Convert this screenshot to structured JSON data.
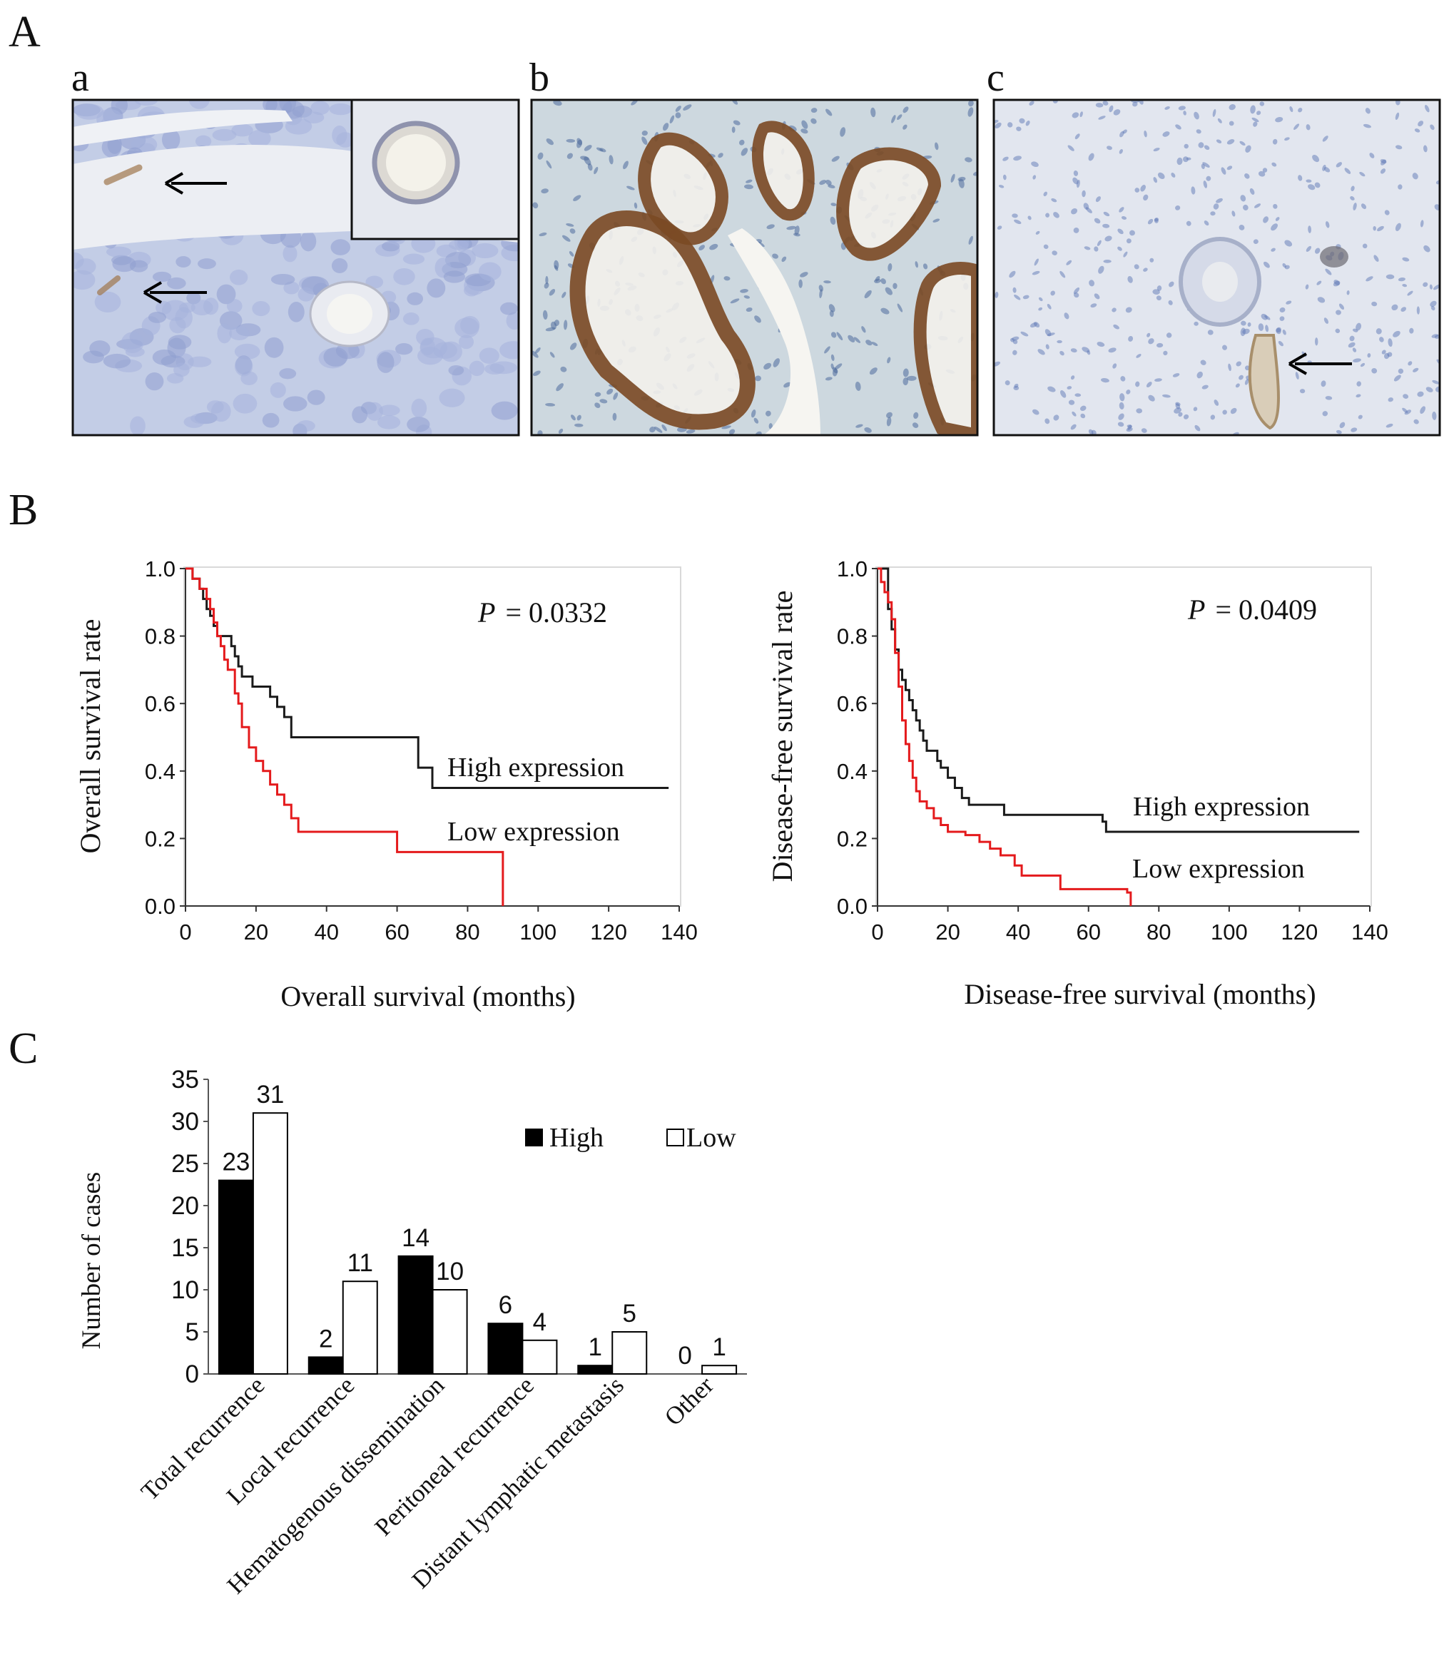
{
  "figure": {
    "panel_labels": [
      "A",
      "B",
      "C"
    ],
    "micrograph_labels": [
      "a",
      "b",
      "c"
    ],
    "micrographs": [
      {
        "label": "a",
        "stain": "weak",
        "arrows": 2,
        "inset": true
      },
      {
        "label": "b",
        "stain": "strong",
        "arrows": 0,
        "inset": false
      },
      {
        "label": "c",
        "stain": "negative",
        "arrows": 1,
        "inset": false
      }
    ]
  },
  "colors": {
    "high_series": "#1a1a1a",
    "low_series": "#e41a1c",
    "bar_high_fill": "#000000",
    "bar_low_fill": "#ffffff",
    "tissue_background": "#cdd6e8",
    "brown_stain": "#8a5a2b"
  },
  "chart_data": [
    {
      "panel": "B-left",
      "type": "line",
      "xlabel": "Overall survival (months)",
      "ylabel": "Overall survival rate",
      "xlim": [
        0,
        140
      ],
      "ylim": [
        0,
        1
      ],
      "xticks": [
        0,
        20,
        40,
        60,
        80,
        100,
        120,
        140
      ],
      "yticks": [
        0.0,
        0.2,
        0.4,
        0.6,
        0.8,
        1.0
      ],
      "ytick_labels": [
        "0.0",
        "0.2",
        "0.4",
        "0.6",
        "0.8",
        "1.0"
      ],
      "p_prefix": "P",
      "p_value": "= 0.0332",
      "series": [
        {
          "name": "High expression",
          "color_key": "high_series",
          "x": [
            0,
            2,
            4,
            5,
            6,
            7,
            8,
            9,
            11,
            13,
            14,
            15,
            16,
            19,
            22,
            24,
            26,
            28,
            30,
            66,
            70,
            137
          ],
          "y": [
            1.0,
            0.97,
            0.94,
            0.91,
            0.88,
            0.86,
            0.83,
            0.8,
            0.8,
            0.77,
            0.74,
            0.71,
            0.68,
            0.65,
            0.65,
            0.62,
            0.59,
            0.56,
            0.5,
            0.41,
            0.35,
            0.35
          ]
        },
        {
          "name": "Low expression",
          "color_key": "low_series",
          "x": [
            0,
            2,
            4,
            6,
            7,
            8,
            9,
            10,
            11,
            12,
            14,
            15,
            16,
            18,
            20,
            22,
            24,
            26,
            28,
            30,
            32,
            60,
            90,
            90
          ],
          "y": [
            1.0,
            0.97,
            0.94,
            0.91,
            0.88,
            0.84,
            0.8,
            0.77,
            0.73,
            0.7,
            0.63,
            0.6,
            0.53,
            0.47,
            0.43,
            0.4,
            0.36,
            0.33,
            0.3,
            0.26,
            0.22,
            0.16,
            0.16,
            0.0
          ]
        }
      ]
    },
    {
      "panel": "B-right",
      "type": "line",
      "xlabel": "Disease-free survival (months)",
      "ylabel": "Disease-free survival rate",
      "xlim": [
        0,
        140
      ],
      "ylim": [
        0,
        1
      ],
      "xticks": [
        0,
        20,
        40,
        60,
        80,
        100,
        120,
        140
      ],
      "yticks": [
        0.0,
        0.2,
        0.4,
        0.6,
        0.8,
        1.0
      ],
      "ytick_labels": [
        "0.0",
        "0.2",
        "0.4",
        "0.6",
        "0.8",
        "1.0"
      ],
      "p_prefix": "P",
      "p_value": "= 0.0409",
      "series": [
        {
          "name": "High expression",
          "color_key": "high_series",
          "x": [
            0,
            3,
            4,
            5,
            6,
            7,
            8,
            9,
            10,
            11,
            12,
            13,
            14,
            15,
            17,
            18,
            20,
            22,
            24,
            26,
            27,
            28,
            36,
            37,
            64,
            65,
            137
          ],
          "y": [
            1.0,
            0.88,
            0.82,
            0.76,
            0.7,
            0.67,
            0.64,
            0.61,
            0.58,
            0.55,
            0.52,
            0.49,
            0.46,
            0.46,
            0.43,
            0.41,
            0.38,
            0.35,
            0.32,
            0.3,
            0.3,
            0.3,
            0.27,
            0.27,
            0.25,
            0.22,
            0.22
          ]
        },
        {
          "name": "Low expression",
          "color_key": "low_series",
          "x": [
            0,
            1,
            2,
            3,
            4,
            5,
            6,
            7,
            8,
            9,
            10,
            11,
            12,
            14,
            16,
            18,
            20,
            25,
            29,
            32,
            35,
            39,
            41,
            52,
            71,
            72,
            72
          ],
          "y": [
            1.0,
            0.96,
            0.93,
            0.9,
            0.85,
            0.75,
            0.65,
            0.55,
            0.48,
            0.43,
            0.38,
            0.34,
            0.31,
            0.29,
            0.26,
            0.24,
            0.22,
            0.21,
            0.19,
            0.17,
            0.15,
            0.12,
            0.09,
            0.05,
            0.04,
            0.03,
            0.0
          ]
        }
      ]
    },
    {
      "panel": "C",
      "type": "bar",
      "ylabel": "Number of cases",
      "ylim": [
        0,
        35
      ],
      "yticks": [
        0,
        5,
        10,
        15,
        20,
        25,
        30,
        35
      ],
      "legend_placement": "top-right",
      "categories": [
        "Total recurrence",
        "Local recurrence",
        "Hematogenous dissemination",
        "Peritoneal recurrence",
        "Distant lymphatic metastasis",
        "Other"
      ],
      "series": [
        {
          "name": "High",
          "fill_key": "bar_high_fill",
          "values": [
            23,
            2,
            14,
            6,
            1,
            0
          ]
        },
        {
          "name": "Low",
          "fill_key": "bar_low_fill",
          "values": [
            31,
            11,
            10,
            4,
            5,
            1
          ]
        }
      ]
    }
  ]
}
